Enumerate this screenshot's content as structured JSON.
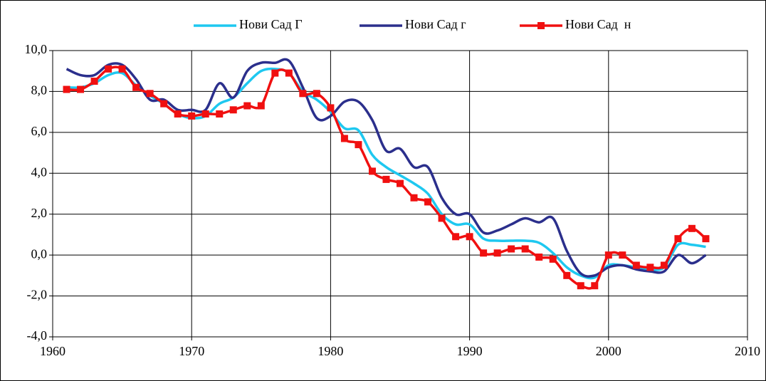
{
  "chart_data": {
    "type": "line",
    "x": [
      1961,
      1962,
      1963,
      1964,
      1965,
      1966,
      1967,
      1968,
      1969,
      1970,
      1971,
      1972,
      1973,
      1974,
      1975,
      1976,
      1977,
      1978,
      1979,
      1980,
      1981,
      1982,
      1983,
      1984,
      1985,
      1986,
      1987,
      1988,
      1989,
      1990,
      1991,
      1992,
      1993,
      1994,
      1995,
      1996,
      1997,
      1998,
      1999,
      2000,
      2001,
      2002,
      2003,
      2004,
      2005,
      2006,
      2007
    ],
    "series": [
      {
        "name": "Нови Сад Г",
        "color": "#1ec8f0",
        "marker": false,
        "values": [
          8.2,
          8.2,
          8.4,
          8.8,
          8.9,
          8.3,
          7.8,
          7.4,
          6.9,
          6.7,
          6.8,
          7.4,
          7.7,
          8.4,
          9.0,
          9.1,
          8.9,
          8.0,
          7.6,
          7.0,
          6.2,
          6.1,
          4.9,
          4.3,
          3.9,
          3.5,
          3.0,
          2.0,
          1.5,
          1.5,
          0.8,
          0.7,
          0.7,
          0.7,
          0.6,
          0.1,
          -0.6,
          -1.0,
          -1.1,
          -0.5,
          -0.5,
          -0.6,
          -0.7,
          -0.6,
          0.5,
          0.5,
          0.4
        ]
      },
      {
        "name": "Нови Сад г",
        "color": "#2b2f8c",
        "marker": false,
        "values": [
          9.1,
          8.8,
          8.8,
          9.3,
          9.3,
          8.6,
          7.6,
          7.6,
          7.1,
          7.1,
          7.1,
          8.4,
          7.7,
          9.0,
          9.4,
          9.4,
          9.5,
          8.2,
          6.7,
          6.8,
          7.5,
          7.5,
          6.6,
          5.1,
          5.2,
          4.3,
          4.3,
          2.8,
          2.0,
          2.0,
          1.1,
          1.2,
          1.5,
          1.8,
          1.6,
          1.8,
          0.2,
          -0.9,
          -1.0,
          -0.6,
          -0.5,
          -0.7,
          -0.8,
          -0.8,
          0.0,
          -0.4,
          0.0
        ]
      },
      {
        "name": "Нови Сад  н",
        "color": "#f01010",
        "marker": true,
        "values": [
          8.1,
          8.1,
          8.5,
          9.1,
          9.1,
          8.2,
          7.9,
          7.4,
          6.9,
          6.8,
          6.9,
          6.9,
          7.1,
          7.3,
          7.3,
          8.9,
          8.9,
          7.9,
          7.9,
          7.2,
          5.7,
          5.4,
          4.1,
          3.7,
          3.5,
          2.8,
          2.6,
          1.8,
          0.9,
          0.9,
          0.1,
          0.1,
          0.3,
          0.3,
          -0.1,
          -0.2,
          -1.0,
          -1.5,
          -1.5,
          0.0,
          0.0,
          -0.5,
          -0.6,
          -0.5,
          0.8,
          1.3,
          0.8
        ]
      }
    ],
    "xlim": [
      1960,
      2010
    ],
    "xticks": [
      1960,
      1970,
      1980,
      1990,
      2000,
      2010
    ],
    "ylim": [
      -4,
      10
    ],
    "yticks": [
      {
        "value": -4,
        "label": "-4,0"
      },
      {
        "value": -2,
        "label": "-2,0"
      },
      {
        "value": 0,
        "label": "0,0"
      },
      {
        "value": 2,
        "label": "2,0"
      },
      {
        "value": 4,
        "label": "4,0"
      },
      {
        "value": 6,
        "label": "6,0"
      },
      {
        "value": 8,
        "label": "8,0"
      },
      {
        "value": 10,
        "label": "10,0"
      }
    ],
    "grid": true,
    "legend": "top"
  }
}
